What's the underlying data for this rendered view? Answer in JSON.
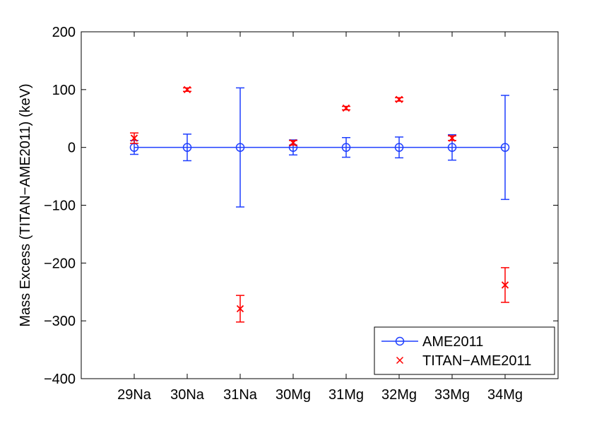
{
  "chart_data": {
    "type": "scatter",
    "ylabel": "Mass Excess (TITAN−AME2011) (keV)",
    "xlabel": "",
    "categories": [
      "29Na",
      "30Na",
      "31Na",
      "30Mg",
      "31Mg",
      "32Mg",
      "33Mg",
      "34Mg"
    ],
    "ylim": [
      -400,
      200
    ],
    "yticks": [
      -400,
      -300,
      -200,
      -100,
      0,
      100,
      200
    ],
    "ytick_labels": [
      "−400",
      "−300",
      "−200",
      "−100",
      "0",
      "100",
      "200"
    ],
    "grid": false,
    "legend_position": "bottom-right",
    "series": [
      {
        "name": "AME2011",
        "marker": "circle",
        "line": true,
        "color": "#1f3fff",
        "values": [
          0,
          0,
          0,
          0,
          0,
          0,
          0,
          0
        ],
        "errors": [
          12,
          23,
          103,
          13,
          17,
          18,
          22,
          90
        ]
      },
      {
        "name": "TITAN−AME2011",
        "marker": "x",
        "line": false,
        "color": "#ff0000",
        "values": [
          16,
          100,
          -279,
          8,
          68,
          83,
          16,
          -238
        ],
        "errors": [
          9,
          3,
          23,
          4,
          3,
          3,
          4,
          30
        ]
      }
    ]
  }
}
